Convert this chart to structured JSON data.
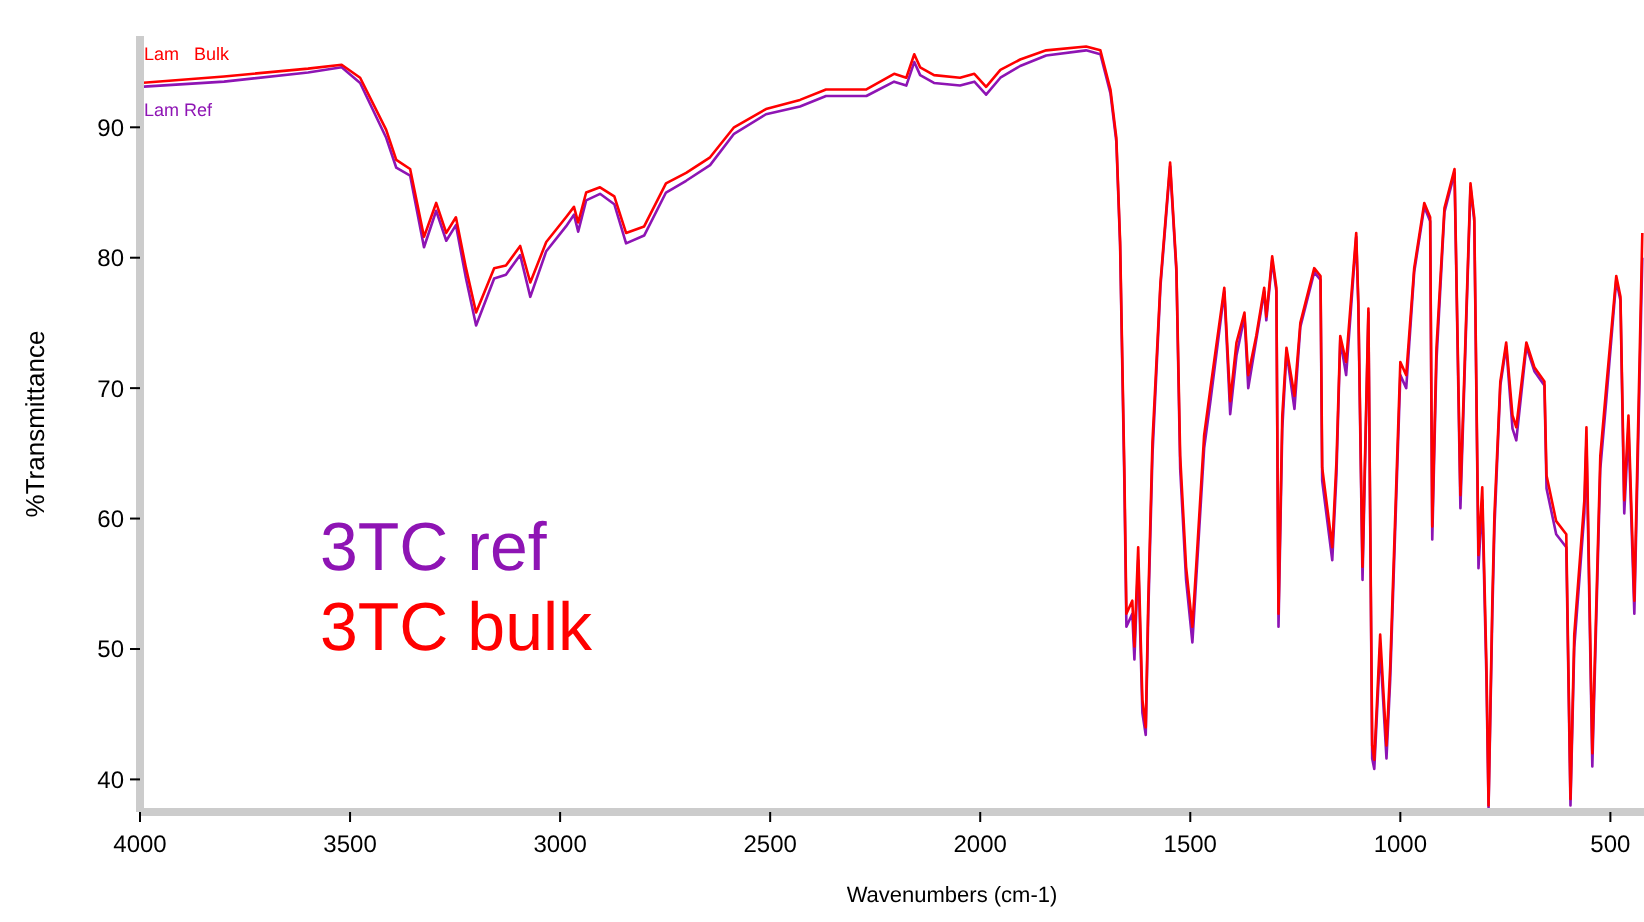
{
  "chart_data": {
    "type": "line",
    "xlabel": "Wavenumbers (cm-1)",
    "ylabel": "%Transmittance",
    "xlim": [
      4000,
      420
    ],
    "xticks": [
      4000,
      3500,
      3000,
      2500,
      2000,
      1500,
      1000,
      500
    ],
    "ylim": [
      37.5,
      97
    ],
    "yticks": [
      40,
      50,
      60,
      70,
      80,
      90
    ],
    "grid": false,
    "legend": "left",
    "marker": "none",
    "line_style": "solid",
    "annotations": [
      "Lam   Bulk",
      "Lam Ref"
    ],
    "x": [
      4000,
      3800,
      3600,
      3520,
      3476,
      3414,
      3390,
      3357,
      3324,
      3295,
      3271,
      3248,
      3224,
      3200,
      3157,
      3129,
      3095,
      3071,
      3033,
      2986,
      2967,
      2957,
      2938,
      2905,
      2871,
      2843,
      2800,
      2748,
      2700,
      2643,
      2586,
      2510,
      2429,
      2367,
      2271,
      2205,
      2176,
      2157,
      2143,
      2110,
      2048,
      2014,
      1986,
      1952,
      1905,
      1843,
      1748,
      1714,
      1690,
      1676,
      1667,
      1657,
      1652,
      1638,
      1633,
      1624,
      1614,
      1606,
      1600,
      1590,
      1571,
      1548,
      1533,
      1524,
      1510,
      1495,
      1486,
      1467,
      1452,
      1419,
      1405,
      1390,
      1371,
      1362,
      1343,
      1324,
      1319,
      1305,
      1295,
      1290,
      1281,
      1271,
      1252,
      1238,
      1205,
      1190,
      1186,
      1162,
      1152,
      1143,
      1129,
      1105,
      1100,
      1090,
      1076,
      1067,
      1062,
      1048,
      1033,
      1024,
      1000,
      986,
      967,
      943,
      929,
      924,
      914,
      895,
      871,
      857,
      833,
      824,
      814,
      805,
      795,
      790,
      781,
      776,
      762,
      748,
      733,
      724,
      700,
      681,
      657,
      652,
      629,
      605,
      595,
      586,
      562,
      557,
      543,
      524,
      510,
      486,
      476,
      467,
      457,
      443,
      424
    ],
    "series": [
      {
        "name": "3TC ref",
        "color": "#8e14b4",
        "values": [
          93.1,
          93.5,
          94.2,
          94.6,
          93.4,
          89.2,
          86.9,
          86.3,
          80.8,
          83.6,
          81.3,
          82.5,
          78.4,
          74.8,
          78.4,
          78.7,
          80.2,
          77,
          80.5,
          82.4,
          83.3,
          82,
          84.4,
          84.9,
          84.1,
          81.1,
          81.7,
          85,
          85.9,
          87.1,
          89.5,
          91,
          91.6,
          92.4,
          92.4,
          93.5,
          93.2,
          95,
          94,
          93.4,
          93.2,
          93.5,
          92.5,
          93.8,
          94.7,
          95.5,
          95.9,
          95.6,
          92.6,
          88.9,
          80.9,
          63,
          51.7,
          52.7,
          49.2,
          56.8,
          45.1,
          43.4,
          52.7,
          64.9,
          77.8,
          87,
          78.9,
          63.8,
          55.3,
          50.5,
          55.3,
          65.4,
          69,
          77.4,
          68,
          72.5,
          75.5,
          70,
          73.7,
          77.4,
          75.2,
          79.8,
          77.4,
          51.7,
          66.9,
          72.8,
          68.4,
          74.7,
          78.9,
          78.3,
          62.9,
          56.8,
          63.4,
          73.7,
          71,
          81.6,
          76.3,
          55.3,
          75.8,
          41.6,
          40.8,
          50.1,
          41.6,
          47.7,
          71,
          70,
          78.9,
          83.9,
          82.8,
          58.4,
          72.1,
          83.5,
          86.5,
          60.8,
          85.4,
          82.8,
          56.2,
          61.4,
          47.7,
          37.8,
          52.7,
          59.3,
          70.2,
          73.2,
          66.9,
          66,
          73.2,
          71.3,
          70.2,
          62.3,
          58.8,
          57.8,
          38,
          50.1,
          60.4,
          66,
          41,
          63.8,
          69,
          78.3,
          76.7,
          60.4,
          66.9,
          52.7,
          80
        ]
      },
      {
        "name": "3TC bulk",
        "color": "#ff0000",
        "values": [
          93.4,
          93.9,
          94.5,
          94.8,
          93.8,
          89.8,
          87.5,
          86.8,
          81.6,
          84.2,
          81.9,
          83.1,
          79.2,
          75.8,
          79.2,
          79.4,
          80.9,
          78.1,
          81.2,
          83.1,
          83.9,
          82.7,
          85,
          85.4,
          84.7,
          81.9,
          82.4,
          85.7,
          86.5,
          87.7,
          90,
          91.4,
          92.1,
          92.9,
          92.9,
          94.1,
          93.8,
          95.6,
          94.6,
          94,
          93.8,
          94.1,
          93.1,
          94.4,
          95.2,
          95.9,
          96.2,
          95.9,
          92.9,
          89.2,
          81.2,
          63.9,
          52.7,
          53.7,
          50.2,
          57.8,
          46.1,
          44,
          53.7,
          65.9,
          78.1,
          87.3,
          79.2,
          64.8,
          56.3,
          51.7,
          56.3,
          66.4,
          70,
          77.7,
          69,
          73.5,
          75.8,
          71,
          74,
          77.7,
          75.5,
          80.1,
          77.7,
          52.7,
          67.9,
          73.1,
          69.4,
          75,
          79.2,
          78.6,
          63.9,
          57.8,
          64.4,
          74,
          72,
          81.9,
          76.6,
          56.3,
          76.1,
          42.6,
          41.5,
          51.1,
          42.6,
          48.7,
          72,
          71,
          79.2,
          84.2,
          83.1,
          59.4,
          73.1,
          83.8,
          86.8,
          61.8,
          85.7,
          83.1,
          57.2,
          62.4,
          48.7,
          38,
          53.7,
          60.3,
          70.5,
          73.5,
          67.9,
          67,
          73.5,
          71.6,
          70.5,
          63.3,
          59.8,
          58.8,
          38.5,
          51.1,
          61.4,
          67,
          42,
          64.8,
          70,
          78.6,
          77,
          61.4,
          67.9,
          53.7,
          81.9
        ]
      }
    ]
  }
}
